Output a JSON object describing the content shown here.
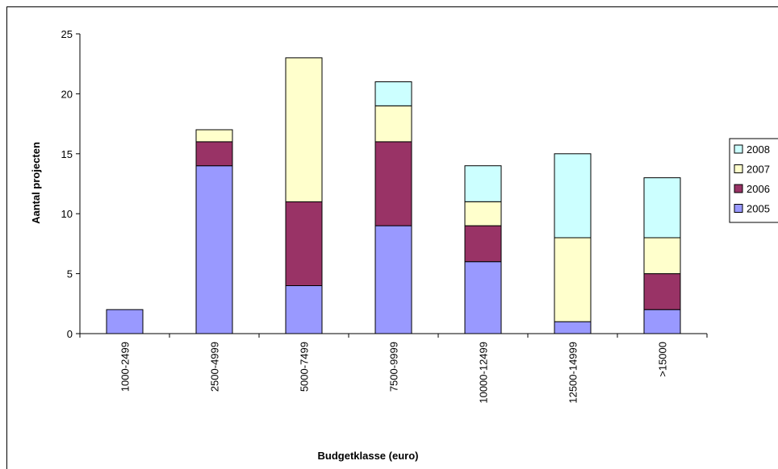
{
  "chart_data": {
    "type": "bar",
    "stacked": true,
    "categories": [
      "1000-2499",
      "2500-4999",
      "5000-7499",
      "7500-9999",
      "10000-12499",
      "12500-14999",
      ">15000"
    ],
    "series": [
      {
        "name": "2005",
        "color": "#9999FF",
        "values": [
          2,
          14,
          4,
          9,
          6,
          1,
          2
        ]
      },
      {
        "name": "2006",
        "color": "#993366",
        "values": [
          0,
          2,
          7,
          7,
          3,
          0,
          3
        ]
      },
      {
        "name": "2007",
        "color": "#FFFFCC",
        "values": [
          0,
          1,
          12,
          3,
          2,
          7,
          3
        ]
      },
      {
        "name": "2008",
        "color": "#CCFFFF",
        "values": [
          0,
          0,
          0,
          2,
          3,
          7,
          5
        ]
      }
    ],
    "xlabel": "Budgetklasse (euro)",
    "ylabel": "Aantal projecten",
    "ylim": [
      0,
      25
    ],
    "yticks": [
      0,
      5,
      10,
      15,
      20,
      25
    ],
    "grid": false,
    "legend_position": "right"
  }
}
